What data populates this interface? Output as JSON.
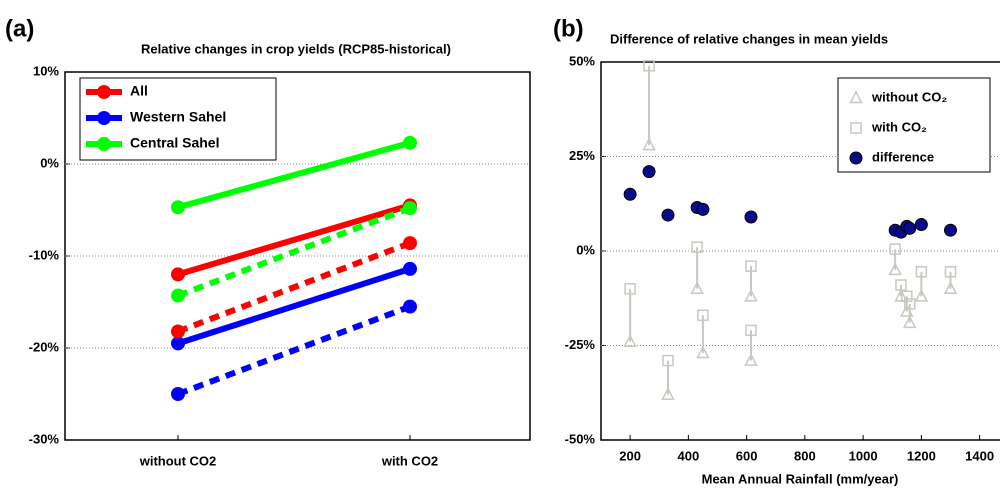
{
  "chart_data": [
    {
      "type": "line",
      "panel": "(a)",
      "title": "Relative changes in crop yields (RCP85-historical)",
      "categories": [
        "without CO2",
        "with CO2"
      ],
      "ylim": [
        -30,
        10
      ],
      "yticks": [
        {
          "value": -30,
          "label": "-30%"
        },
        {
          "value": -20,
          "label": "-20%"
        },
        {
          "value": -10,
          "label": "-10%"
        },
        {
          "value": 0,
          "label": "0%"
        },
        {
          "value": 10,
          "label": "10%"
        }
      ],
      "grid": true,
      "legend": "upper left",
      "series": [
        {
          "name": "All",
          "color": "#ff0000",
          "style": "solid",
          "values": [
            -12,
            -4.5
          ]
        },
        {
          "name": "Western Sahel",
          "color": "#0000ff",
          "style": "solid",
          "values": [
            -19.5,
            -11.4
          ]
        },
        {
          "name": "Central Sahel",
          "color": "#00ff00",
          "style": "solid",
          "values": [
            -4.7,
            2.3
          ]
        },
        {
          "color": "#ff0000",
          "style": "dashed",
          "values": [
            -18.2,
            -8.6
          ]
        },
        {
          "color": "#0000ff",
          "style": "dashed",
          "values": [
            -25,
            -15.5
          ]
        },
        {
          "color": "#00ff00",
          "style": "dashed",
          "values": [
            -14.3,
            -4.8
          ]
        }
      ]
    },
    {
      "type": "scatter",
      "panel": "(b)",
      "title": "Difference of relative changes in mean yields",
      "xlabel": "Mean Annual Rainfall (mm/year)",
      "xlim": [
        100,
        1470
      ],
      "xticks": [
        200,
        400,
        600,
        800,
        1000,
        1200,
        1400
      ],
      "ylim": [
        -50,
        50
      ],
      "yticks": [
        {
          "value": -50,
          "label": "-50%"
        },
        {
          "value": -25,
          "label": "-25%"
        },
        {
          "value": 0,
          "label": "0%"
        },
        {
          "value": 25,
          "label": "25%"
        },
        {
          "value": 50,
          "label": "50%"
        }
      ],
      "grid": true,
      "legend": "upper right",
      "series": [
        {
          "name": "without CO₂",
          "color": "#c8c8c0",
          "marker": "triangle",
          "x": [
            200,
            265,
            330,
            430,
            450,
            615,
            615,
            1110,
            1130,
            1150,
            1160,
            1200,
            1300
          ],
          "values": [
            -24,
            28,
            -38,
            -10,
            -27,
            -12,
            -29,
            -5,
            -12,
            -16,
            -19,
            -12,
            -10
          ]
        },
        {
          "name": "with CO₂",
          "color": "#c8c8c0",
          "marker": "square",
          "x": [
            200,
            265,
            330,
            430,
            450,
            615,
            615,
            1110,
            1130,
            1150,
            1160,
            1200,
            1300
          ],
          "values": [
            -10,
            49,
            -29,
            1,
            -17,
            -4,
            -21,
            0.5,
            -9,
            -12,
            -14,
            -5.5,
            -5.5
          ]
        },
        {
          "name": "difference",
          "color": "#0a0a8c",
          "marker": "circle",
          "x": [
            200,
            265,
            330,
            430,
            450,
            615,
            1110,
            1130,
            1150,
            1160,
            1200,
            1300
          ],
          "values": [
            15,
            21,
            9.5,
            11.5,
            11,
            9,
            5.5,
            5,
            6.5,
            6,
            7,
            5.5
          ]
        }
      ]
    }
  ]
}
